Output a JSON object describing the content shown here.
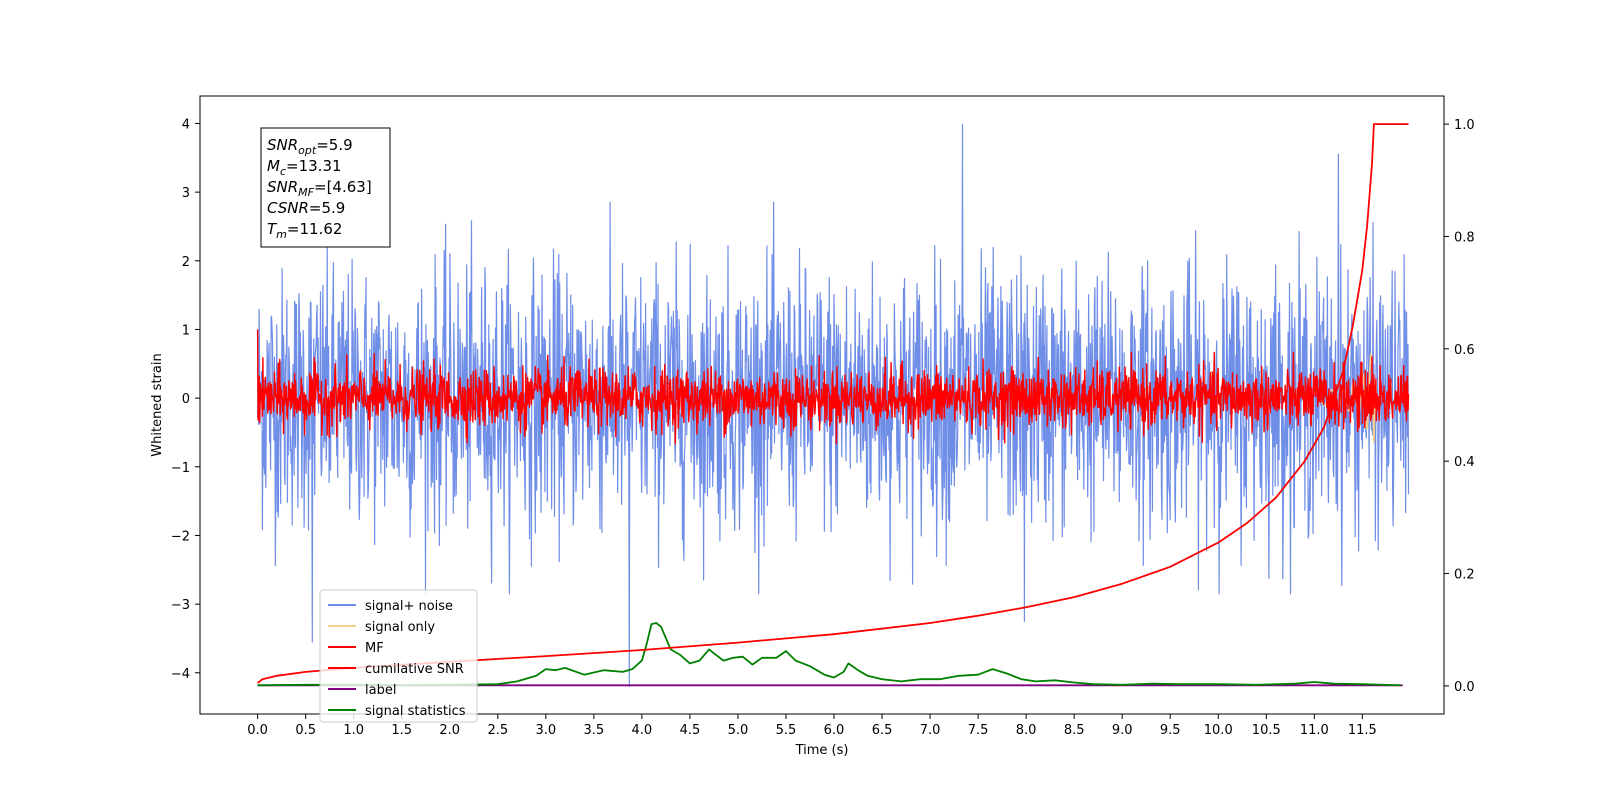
{
  "chart_data": {
    "type": "line",
    "xlabel": "Time (s)",
    "ylabel": "Whitened strain",
    "xlim": [
      -0.6,
      12.35
    ],
    "ylim": [
      -4.6,
      4.4
    ],
    "y2lim": [
      -0.05,
      1.05
    ],
    "x_ticks": [
      0.0,
      0.5,
      1.0,
      1.5,
      2.0,
      2.5,
      3.0,
      3.5,
      4.0,
      4.5,
      5.0,
      5.5,
      6.0,
      6.5,
      7.0,
      7.5,
      8.0,
      8.5,
      9.0,
      9.5,
      10.0,
      10.5,
      11.0,
      11.5
    ],
    "x_tick_labels": [
      "0.0",
      "0.5",
      "1.0",
      "1.5",
      "2.0",
      "2.5",
      "3.0",
      "3.5",
      "4.0",
      "4.5",
      "5.0",
      "5.5",
      "6.0",
      "6.5",
      "7.0",
      "7.5",
      "8.0",
      "8.5",
      "9.0",
      "9.5",
      "10.0",
      "10.5",
      "11.0",
      "11.5"
    ],
    "y_ticks": [
      -4,
      -3,
      -2,
      -1,
      0,
      1,
      2,
      3,
      4
    ],
    "y_tick_labels": [
      "−4",
      "−3",
      "−2",
      "−1",
      "0",
      "1",
      "2",
      "3",
      "4"
    ],
    "y2_ticks": [
      0.0,
      0.2,
      0.4,
      0.6,
      0.8,
      1.0
    ],
    "y2_tick_labels": [
      "0.0",
      "0.2",
      "0.4",
      "0.6",
      "0.8",
      "1.0"
    ],
    "annotation": [
      {
        "base": "SNR",
        "sub": "opt",
        "value": "=5.9"
      },
      {
        "base": "M",
        "sub": "c",
        "value": "=13.31"
      },
      {
        "base": "SNR",
        "sub": "MF",
        "value": "=[4.63]"
      },
      {
        "base": "CSNR",
        "sub": "",
        "value": "=5.9"
      },
      {
        "base": "T",
        "sub": "m",
        "value": "=11.62"
      }
    ],
    "legend": {
      "placement": "lower-left",
      "entries": [
        {
          "label": "signal+ noise",
          "color": "#6f8ee8"
        },
        {
          "label": "signal only",
          "color": "#f7d08a"
        },
        {
          "label": "MF",
          "color": "#ff0000"
        },
        {
          "label": "cumilative SNR",
          "color": "#ff0000"
        },
        {
          "label": "label",
          "color": "#800080"
        },
        {
          "label": "signal statistics",
          "color": "#008000"
        }
      ]
    },
    "series": [
      {
        "name": "signal+ noise",
        "color": "#6f8ee8",
        "axis": "left",
        "style": "noise",
        "x_range": [
          0.0,
          11.98
        ],
        "typical_amplitude": 1.5,
        "peaks": [
          {
            "x": 7.34,
            "y": 3.99
          },
          {
            "x": 3.87,
            "y": -4.2
          },
          {
            "x": 0.57,
            "y": -3.55
          },
          {
            "x": 11.25,
            "y": 3.55
          },
          {
            "x": 7.98,
            "y": -3.25
          }
        ]
      },
      {
        "name": "MF",
        "color": "#ff0000",
        "axis": "left",
        "style": "noise",
        "x_range": [
          0.0,
          11.98
        ],
        "typical_amplitude": 0.35,
        "peaks": [
          {
            "x": 0.0,
            "y": 1.0
          },
          {
            "x": 11.6,
            "y": 0.6
          }
        ]
      },
      {
        "name": "signal only",
        "color": "#f7d08a",
        "axis": "left",
        "style": "chirp",
        "x": [
          10.9,
          11.1,
          11.3,
          11.45,
          11.55,
          11.6,
          11.62,
          11.63
        ],
        "amplitude": [
          0.05,
          0.1,
          0.15,
          0.25,
          0.45,
          0.7,
          0.85,
          0.0
        ]
      },
      {
        "name": "cumilative SNR",
        "color": "#ff0000",
        "axis": "right",
        "x": [
          0.0,
          0.05,
          0.2,
          0.5,
          1.0,
          2.0,
          3.0,
          4.0,
          5.0,
          6.0,
          7.0,
          7.5,
          8.0,
          8.5,
          9.0,
          9.5,
          10.0,
          10.3,
          10.6,
          10.9,
          11.1,
          11.3,
          11.4,
          11.5,
          11.55,
          11.6,
          11.62,
          11.98
        ],
        "values": [
          0.005,
          0.012,
          0.018,
          0.025,
          0.032,
          0.043,
          0.053,
          0.064,
          0.077,
          0.092,
          0.112,
          0.125,
          0.14,
          0.158,
          0.182,
          0.212,
          0.255,
          0.29,
          0.335,
          0.4,
          0.46,
          0.56,
          0.64,
          0.74,
          0.82,
          0.93,
          1.0,
          1.0
        ]
      },
      {
        "name": "label",
        "color": "#800080",
        "axis": "right",
        "x": [
          0.0,
          11.92
        ],
        "values": [
          0.001,
          0.001
        ]
      },
      {
        "name": "signal statistics",
        "color": "#008000",
        "axis": "right",
        "x": [
          0.0,
          0.5,
          1.0,
          1.5,
          2.0,
          2.5,
          2.7,
          2.9,
          3.0,
          3.1,
          3.2,
          3.4,
          3.6,
          3.8,
          3.9,
          4.0,
          4.05,
          4.1,
          4.15,
          4.2,
          4.25,
          4.3,
          4.4,
          4.5,
          4.6,
          4.7,
          4.75,
          4.85,
          4.95,
          5.05,
          5.15,
          5.25,
          5.4,
          5.5,
          5.6,
          5.75,
          5.9,
          6.0,
          6.1,
          6.15,
          6.25,
          6.35,
          6.5,
          6.7,
          6.9,
          7.1,
          7.3,
          7.5,
          7.65,
          7.8,
          7.95,
          8.1,
          8.3,
          8.5,
          8.7,
          9.0,
          9.3,
          9.6,
          10.0,
          10.4,
          10.8,
          11.0,
          11.2,
          11.5,
          11.9
        ],
        "values": [
          0.001,
          0.002,
          0.002,
          0.001,
          0.002,
          0.003,
          0.008,
          0.018,
          0.03,
          0.028,
          0.032,
          0.02,
          0.028,
          0.025,
          0.03,
          0.045,
          0.075,
          0.11,
          0.112,
          0.105,
          0.085,
          0.065,
          0.055,
          0.04,
          0.045,
          0.065,
          0.058,
          0.045,
          0.05,
          0.052,
          0.038,
          0.05,
          0.05,
          0.062,
          0.045,
          0.035,
          0.02,
          0.015,
          0.025,
          0.04,
          0.028,
          0.018,
          0.012,
          0.008,
          0.012,
          0.012,
          0.018,
          0.02,
          0.03,
          0.022,
          0.012,
          0.008,
          0.01,
          0.006,
          0.003,
          0.002,
          0.004,
          0.003,
          0.003,
          0.002,
          0.004,
          0.007,
          0.004,
          0.003,
          0.001
        ]
      }
    ]
  }
}
